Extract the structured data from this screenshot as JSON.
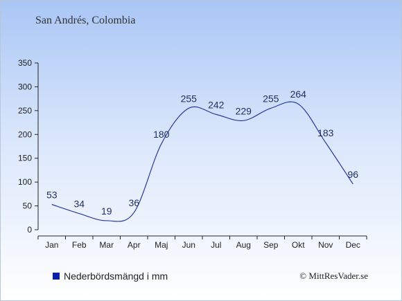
{
  "header": {
    "title": "San Andrés, Colombia"
  },
  "legend": {
    "label": "Nederbördsmängd i mm",
    "color": "#0b1fa8"
  },
  "footer": {
    "copyright": "© MittResVader.se"
  },
  "chart_data": {
    "type": "line",
    "categories": [
      "Jan",
      "Feb",
      "Mar",
      "Apr",
      "Maj",
      "Jun",
      "Jul",
      "Aug",
      "Sep",
      "Okt",
      "Nov",
      "Dec"
    ],
    "series": [
      {
        "name": "Nederbördsmängd i mm",
        "values": [
          53,
          34,
          19,
          36,
          180,
          255,
          242,
          229,
          255,
          264,
          183,
          96
        ],
        "color": "#2a3a9c"
      }
    ],
    "yticks": [
      0,
      50,
      100,
      150,
      200,
      250,
      300,
      350
    ],
    "ylim": [
      0,
      350
    ],
    "grid": false,
    "legend_position": "bottom-left"
  }
}
